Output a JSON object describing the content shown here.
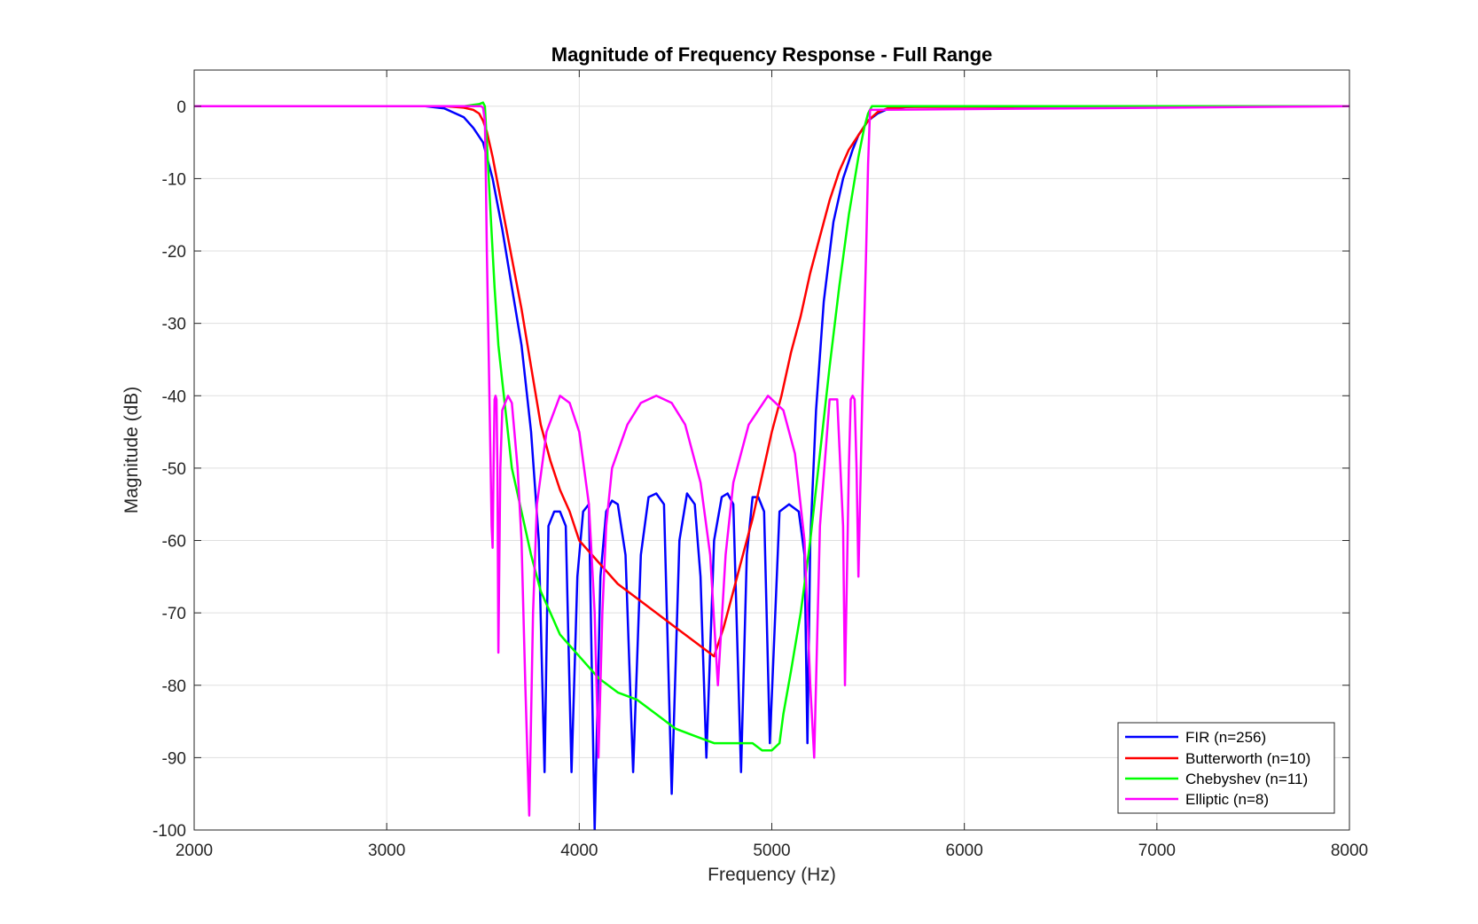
{
  "chart_data": {
    "type": "line",
    "title": "Magnitude of Frequency Response - Full Range",
    "xlabel": "Frequency (Hz)",
    "ylabel": "Magnitude (dB)",
    "xlim": [
      2000,
      8000
    ],
    "ylim": [
      -100,
      5
    ],
    "xticks": [
      2000,
      3000,
      4000,
      5000,
      6000,
      7000,
      8000
    ],
    "xtick_labels": [
      "2000",
      "3000",
      "4000",
      "5000",
      "6000",
      "7000",
      "8000"
    ],
    "yticks": [
      0,
      -10,
      -20,
      -30,
      -40,
      -50,
      -60,
      -70,
      -80,
      -90,
      -100
    ],
    "ytick_labels": [
      "0",
      "-10",
      "-20",
      "-30",
      "-40",
      "-50",
      "-60",
      "-70",
      "-80",
      "-90",
      "-100"
    ],
    "grid": true,
    "legend_position": "bottom-right",
    "series": [
      {
        "name": "FIR (n=256)",
        "color": "#0000ff",
        "x": [
          2000,
          3200,
          3300,
          3400,
          3450,
          3500,
          3550,
          3600,
          3650,
          3700,
          3750,
          3790,
          3820,
          3840,
          3870,
          3900,
          3930,
          3960,
          3990,
          4020,
          4050,
          4080,
          4110,
          4140,
          4170,
          4200,
          4240,
          4280,
          4320,
          4360,
          4400,
          4440,
          4480,
          4520,
          4560,
          4600,
          4630,
          4660,
          4700,
          4740,
          4770,
          4800,
          4840,
          4870,
          4900,
          4930,
          4960,
          4990,
          5040,
          5090,
          5140,
          5170,
          5185,
          5200,
          5230,
          5270,
          5320,
          5370,
          5420,
          5450,
          5500,
          5550,
          5600,
          5700,
          5800,
          8000
        ],
        "y": [
          0,
          0,
          -0.3,
          -1.5,
          -3,
          -5,
          -10,
          -17,
          -25,
          -33,
          -45,
          -60,
          -92,
          -58,
          -56,
          -56,
          -58,
          -92,
          -65,
          -56,
          -55,
          -100,
          -65,
          -56,
          -54.5,
          -55,
          -62,
          -92,
          -62,
          -54,
          -53.5,
          -55,
          -95,
          -60,
          -53.5,
          -55,
          -65,
          -90,
          -60,
          -54,
          -53.5,
          -55,
          -92,
          -62,
          -54,
          -54,
          -56,
          -88,
          -56,
          -55,
          -56,
          -62,
          -88,
          -60,
          -42,
          -27,
          -16,
          -10,
          -6,
          -4,
          -2,
          -1,
          -0.4,
          -0.1,
          0,
          0
        ]
      },
      {
        "name": "Butterworth (n=10)",
        "color": "#ff0000",
        "x": [
          2000,
          3300,
          3400,
          3450,
          3480,
          3500,
          3520,
          3550,
          3600,
          3650,
          3700,
          3750,
          3800,
          3850,
          3900,
          3950,
          4000,
          4100,
          4200,
          4300,
          4400,
          4500,
          4600,
          4700,
          4750,
          4800,
          4850,
          4900,
          4950,
          5000,
          5050,
          5100,
          5150,
          5200,
          5250,
          5300,
          5350,
          5400,
          5450,
          5500,
          5550,
          5600,
          5700,
          8000
        ],
        "y": [
          0,
          0,
          -0.2,
          -0.5,
          -1,
          -2,
          -3.5,
          -7,
          -14,
          -21,
          -28,
          -36,
          -44,
          -49,
          -53,
          -56,
          -60,
          -63,
          -66,
          -68,
          -70,
          -72,
          -74,
          -76,
          -72,
          -67,
          -62,
          -57,
          -51,
          -45,
          -40,
          -34,
          -29,
          -23,
          -18,
          -13,
          -9,
          -6,
          -4,
          -2,
          -0.8,
          -0.3,
          -0.1,
          0
        ]
      },
      {
        "name": "Chebyshev (n=11)",
        "color": "#00ff00",
        "x": [
          2000,
          3400,
          3450,
          3480,
          3500,
          3510,
          3520,
          3540,
          3560,
          3580,
          3600,
          3625,
          3650,
          3700,
          3750,
          3800,
          3850,
          3900,
          4000,
          4100,
          4200,
          4300,
          4400,
          4500,
          4600,
          4700,
          4800,
          4900,
          4950,
          5000,
          5040,
          5060,
          5100,
          5150,
          5200,
          5250,
          5300,
          5350,
          5400,
          5450,
          5480,
          5500,
          5520,
          5550,
          8000
        ],
        "y": [
          0,
          0,
          0.2,
          0.3,
          0.5,
          0,
          -5,
          -15,
          -25,
          -33,
          -38,
          -44,
          -50,
          -56,
          -62,
          -67,
          -70,
          -73,
          -76,
          -79,
          -81,
          -82,
          -84,
          -86,
          -87,
          -88,
          -88,
          -88,
          -89,
          -89,
          -88,
          -84,
          -78,
          -70,
          -60,
          -48,
          -36,
          -25,
          -15,
          -7,
          -3,
          -1,
          0,
          0,
          0
        ]
      },
      {
        "name": "Elliptic (n=8)",
        "color": "#ff00ff",
        "x": [
          2000,
          3490,
          3500,
          3510,
          3515,
          3520,
          3530,
          3540,
          3545,
          3550,
          3555,
          3560,
          3565,
          3570,
          3575,
          3580,
          3590,
          3600,
          3630,
          3650,
          3680,
          3700,
          3720,
          3740,
          3760,
          3780,
          3830,
          3900,
          3950,
          4000,
          4050,
          4080,
          4100,
          4120,
          4140,
          4170,
          4250,
          4320,
          4400,
          4480,
          4550,
          4630,
          4680,
          4720,
          4760,
          4800,
          4880,
          4980,
          5060,
          5120,
          5170,
          5200,
          5220,
          5250,
          5300,
          5340,
          5370,
          5380,
          5400,
          5410,
          5420,
          5430,
          5440,
          5450,
          5470,
          5490,
          5500,
          5510,
          8000
        ],
        "y": [
          0,
          0,
          -0.2,
          -2,
          -10,
          -20,
          -35,
          -50,
          -58,
          -61,
          -50,
          -40.5,
          -40,
          -40.5,
          -50,
          -75.5,
          -50,
          -42,
          -40,
          -41,
          -50,
          -60,
          -80,
          -98,
          -70,
          -55,
          -45,
          -40,
          -41,
          -45,
          -55,
          -70,
          -90,
          -70,
          -58,
          -50,
          -44,
          -41,
          -40,
          -41,
          -44,
          -52,
          -62,
          -80,
          -62,
          -52,
          -44,
          -40,
          -42,
          -48,
          -60,
          -80,
          -90,
          -58,
          -40.5,
          -40.5,
          -58,
          -80,
          -50,
          -40.5,
          -40,
          -40.5,
          -50,
          -65,
          -40,
          -20,
          -8,
          -0.5,
          0
        ]
      }
    ]
  }
}
